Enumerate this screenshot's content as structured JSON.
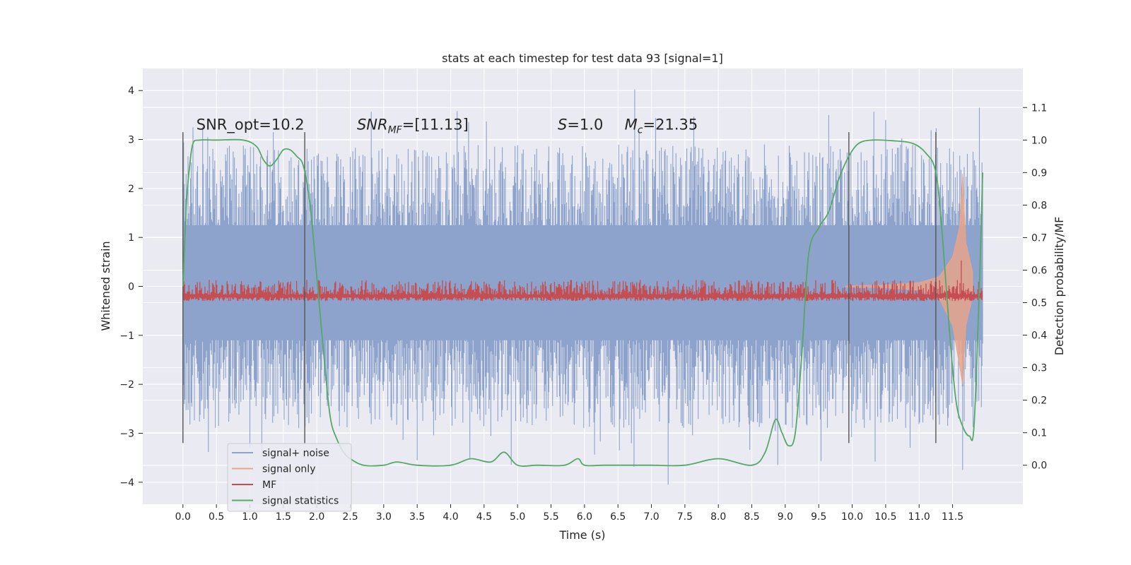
{
  "chart_data": {
    "type": "line",
    "title": "stats at each timestep for test data 93 [signal=1]",
    "xlabel": "Time (s)",
    "ylabel": "Whitened strain",
    "ylabel_right": "Detection probability/MF",
    "xlim": [
      -0.6,
      12.55
    ],
    "ylim": [
      -4.45,
      4.45
    ],
    "ylim_right": [
      -0.12,
      1.22
    ],
    "x_ticks": [
      "0.0",
      "0.5",
      "1.0",
      "1.5",
      "2.0",
      "2.5",
      "3.0",
      "3.5",
      "4.0",
      "4.5",
      "5.0",
      "5.5",
      "6.0",
      "6.5",
      "7.0",
      "7.5",
      "8.0",
      "8.5",
      "9.0",
      "9.5",
      "10.0",
      "10.5",
      "11.0",
      "11.5"
    ],
    "y_ticks": [
      "4",
      "3",
      "2",
      "1",
      "0",
      "−1",
      "−2",
      "−3",
      "−4"
    ],
    "y_ticks_right": [
      "1.1",
      "1.0",
      "0.9",
      "0.8",
      "0.7",
      "0.6",
      "0.5",
      "0.4",
      "0.3",
      "0.2",
      "0.1",
      "0.0"
    ],
    "grid": true,
    "legend_position": "lower-left",
    "colors": {
      "plot_bg": "#eaeaf2",
      "grid": "#ffffff",
      "signal_noise": "#8da3cc",
      "signal_only": "#e8a58a",
      "mf": "#c44e52",
      "signal_statistics": "#55a868",
      "vline": "#555555"
    },
    "annotations": [
      {
        "text": "SNR_opt=10.2",
        "x": 0.2,
        "y": 3.2
      },
      {
        "text": "SNR_MF=[11.13]",
        "x": 2.6,
        "y": 3.2
      },
      {
        "text": "S=1.0",
        "x": 5.6,
        "y": 3.2
      },
      {
        "text": "M_c=21.35",
        "x": 6.6,
        "y": 3.2
      }
    ],
    "vertical_lines": [
      0.0,
      1.82,
      9.95,
      11.25
    ],
    "series": [
      {
        "name": "signal+ noise",
        "style": "dense noise (fill)",
        "x_range": [
          0.0,
          11.95
        ],
        "envelope_typical": [
          -2.2,
          2.6
        ],
        "min": -4.0,
        "max": 4.0
      },
      {
        "name": "signal only",
        "style": "chirp, amplitude growing toward merger",
        "x": [
          9.9,
          10.5,
          11.0,
          11.3,
          11.5,
          11.6,
          11.65,
          11.7,
          11.8
        ],
        "upper": [
          0.01,
          0.03,
          0.08,
          0.2,
          0.6,
          1.2,
          2.3,
          0.9,
          0.3
        ],
        "lower": [
          -0.01,
          -0.03,
          -0.08,
          -0.25,
          -0.8,
          -1.6,
          -2.0,
          -0.8,
          -0.2
        ]
      },
      {
        "name": "MF",
        "axis": "right",
        "style": "noisy band",
        "x_range": [
          0.0,
          11.95
        ],
        "band": [
          0.505,
          0.55
        ],
        "peak": {
          "x": 11.63,
          "y": 0.63
        }
      },
      {
        "name": "signal statistics",
        "axis": "right",
        "x": [
          0.0,
          0.05,
          0.1,
          0.15,
          0.25,
          0.5,
          0.9,
          1.1,
          1.2,
          1.3,
          1.4,
          1.5,
          1.6,
          1.7,
          1.8,
          1.9,
          2.0,
          2.1,
          2.2,
          2.3,
          2.4,
          2.5,
          2.7,
          3.0,
          3.2,
          3.5,
          4.0,
          4.3,
          4.6,
          4.8,
          5.0,
          5.3,
          5.7,
          5.9,
          6.0,
          6.3,
          6.7,
          7.0,
          7.5,
          8.0,
          8.5,
          8.7,
          8.85,
          8.95,
          9.05,
          9.15,
          9.25,
          9.35,
          9.5,
          9.65,
          9.8,
          9.95,
          10.1,
          10.3,
          10.6,
          10.9,
          11.1,
          11.25,
          11.35,
          11.45,
          11.55,
          11.65,
          11.75,
          11.82,
          11.9,
          11.95
        ],
        "y": [
          0.55,
          0.8,
          0.92,
          0.99,
          1.0,
          1.0,
          1.0,
          0.98,
          0.94,
          0.92,
          0.94,
          0.97,
          0.97,
          0.95,
          0.92,
          0.8,
          0.58,
          0.35,
          0.15,
          0.08,
          0.04,
          0.02,
          0.0,
          0.0,
          0.01,
          0.0,
          0.0,
          0.02,
          0.01,
          0.04,
          0.0,
          0.0,
          0.0,
          0.02,
          0.0,
          0.0,
          0.0,
          0.0,
          0.0,
          0.02,
          0.0,
          0.04,
          0.14,
          0.1,
          0.06,
          0.1,
          0.35,
          0.65,
          0.73,
          0.78,
          0.88,
          0.95,
          0.99,
          1.0,
          0.998,
          0.99,
          0.96,
          0.9,
          0.7,
          0.42,
          0.2,
          0.12,
          0.09,
          0.12,
          0.55,
          0.9
        ]
      }
    ]
  }
}
